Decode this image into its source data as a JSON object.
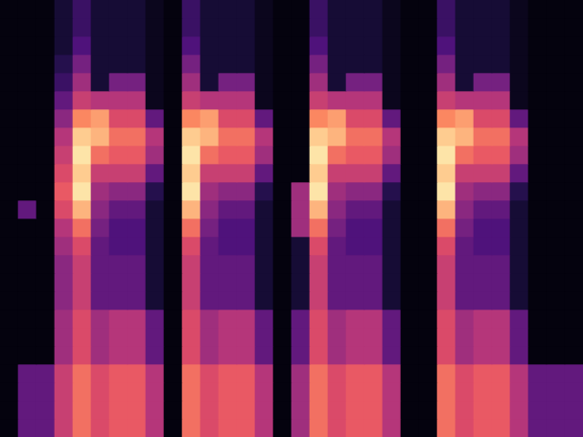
{
  "chart_data": {
    "type": "heatmap",
    "ylim": [
      0,
      24
    ],
    "color_range": [
      0,
      1
    ],
    "grid": false,
    "tick_labels": false,
    "cells": [
      [
        0.02,
        0.02,
        0.02,
        0.1,
        0.2,
        0.1,
        0.1,
        0.1,
        0.05,
        0.02,
        0.2,
        0.1,
        0.1,
        0.1,
        0.05,
        0.02,
        0.02,
        0.2,
        0.1,
        0.1,
        0.1,
        0.05,
        0.02,
        0.02,
        0.2,
        0.1,
        0.1,
        0.1,
        0.05,
        0.02,
        0.02,
        0.02
      ],
      [
        0.02,
        0.02,
        0.02,
        0.1,
        0.2,
        0.1,
        0.1,
        0.1,
        0.05,
        0.02,
        0.2,
        0.1,
        0.1,
        0.1,
        0.05,
        0.02,
        0.02,
        0.2,
        0.1,
        0.1,
        0.1,
        0.05,
        0.02,
        0.02,
        0.2,
        0.1,
        0.1,
        0.1,
        0.05,
        0.02,
        0.02,
        0.02
      ],
      [
        0.02,
        0.02,
        0.02,
        0.1,
        0.25,
        0.1,
        0.1,
        0.1,
        0.05,
        0.02,
        0.25,
        0.1,
        0.1,
        0.1,
        0.05,
        0.02,
        0.02,
        0.25,
        0.1,
        0.1,
        0.1,
        0.05,
        0.02,
        0.02,
        0.25,
        0.1,
        0.1,
        0.1,
        0.05,
        0.02,
        0.02,
        0.02
      ],
      [
        0.02,
        0.02,
        0.02,
        0.15,
        0.35,
        0.1,
        0.1,
        0.1,
        0.05,
        0.02,
        0.35,
        0.1,
        0.1,
        0.1,
        0.05,
        0.02,
        0.02,
        0.35,
        0.1,
        0.1,
        0.1,
        0.05,
        0.02,
        0.02,
        0.35,
        0.1,
        0.1,
        0.1,
        0.05,
        0.02,
        0.02,
        0.02
      ],
      [
        0.02,
        0.02,
        0.02,
        0.2,
        0.45,
        0.1,
        0.35,
        0.35,
        0.05,
        0.02,
        0.45,
        0.1,
        0.35,
        0.35,
        0.05,
        0.02,
        0.02,
        0.45,
        0.1,
        0.35,
        0.35,
        0.05,
        0.02,
        0.02,
        0.45,
        0.1,
        0.35,
        0.35,
        0.05,
        0.02,
        0.02,
        0.02
      ],
      [
        0.02,
        0.02,
        0.02,
        0.3,
        0.55,
        0.5,
        0.5,
        0.5,
        0.05,
        0.02,
        0.55,
        0.5,
        0.5,
        0.5,
        0.05,
        0.02,
        0.02,
        0.55,
        0.5,
        0.5,
        0.5,
        0.05,
        0.02,
        0.02,
        0.55,
        0.5,
        0.5,
        0.5,
        0.05,
        0.02,
        0.02,
        0.02
      ],
      [
        0.02,
        0.02,
        0.02,
        0.4,
        0.75,
        0.8,
        0.6,
        0.6,
        0.3,
        0.02,
        0.75,
        0.8,
        0.6,
        0.6,
        0.3,
        0.02,
        0.02,
        0.75,
        0.8,
        0.6,
        0.6,
        0.3,
        0.02,
        0.02,
        0.75,
        0.8,
        0.6,
        0.6,
        0.3,
        0.02,
        0.02,
        0.02
      ],
      [
        0.02,
        0.02,
        0.02,
        0.5,
        0.9,
        0.85,
        0.7,
        0.7,
        0.5,
        0.02,
        0.9,
        0.85,
        0.7,
        0.7,
        0.5,
        0.02,
        0.02,
        0.9,
        0.85,
        0.7,
        0.7,
        0.5,
        0.02,
        0.02,
        0.9,
        0.85,
        0.7,
        0.7,
        0.5,
        0.02,
        0.02,
        0.02
      ],
      [
        0.02,
        0.02,
        0.02,
        0.55,
        0.95,
        0.7,
        0.65,
        0.65,
        0.45,
        0.02,
        0.95,
        0.7,
        0.65,
        0.65,
        0.45,
        0.02,
        0.02,
        0.95,
        0.7,
        0.65,
        0.65,
        0.45,
        0.02,
        0.02,
        0.95,
        0.7,
        0.65,
        0.65,
        0.45,
        0.02,
        0.02,
        0.02
      ],
      [
        0.02,
        0.02,
        0.02,
        0.6,
        0.9,
        0.55,
        0.55,
        0.55,
        0.3,
        0.02,
        0.9,
        0.55,
        0.55,
        0.55,
        0.3,
        0.02,
        0.02,
        0.9,
        0.55,
        0.55,
        0.55,
        0.3,
        0.02,
        0.02,
        0.9,
        0.55,
        0.55,
        0.55,
        0.3,
        0.02,
        0.02,
        0.02
      ],
      [
        0.02,
        0.02,
        0.02,
        0.65,
        0.95,
        0.45,
        0.4,
        0.4,
        0.15,
        0.02,
        0.95,
        0.45,
        0.4,
        0.4,
        0.15,
        0.02,
        0.45,
        0.95,
        0.45,
        0.4,
        0.4,
        0.15,
        0.02,
        0.02,
        0.95,
        0.45,
        0.4,
        0.4,
        0.15,
        0.02,
        0.02,
        0.02
      ],
      [
        0.02,
        0.3,
        0.02,
        0.6,
        0.85,
        0.4,
        0.3,
        0.3,
        0.1,
        0.02,
        0.85,
        0.4,
        0.3,
        0.3,
        0.1,
        0.02,
        0.45,
        0.85,
        0.4,
        0.3,
        0.3,
        0.1,
        0.02,
        0.02,
        0.85,
        0.4,
        0.3,
        0.3,
        0.1,
        0.02,
        0.02,
        0.02
      ],
      [
        0.02,
        0.02,
        0.02,
        0.5,
        0.7,
        0.35,
        0.25,
        0.25,
        0.1,
        0.02,
        0.7,
        0.35,
        0.25,
        0.25,
        0.1,
        0.02,
        0.45,
        0.7,
        0.35,
        0.25,
        0.25,
        0.1,
        0.02,
        0.02,
        0.7,
        0.35,
        0.25,
        0.25,
        0.1,
        0.02,
        0.02,
        0.02
      ],
      [
        0.02,
        0.02,
        0.02,
        0.45,
        0.6,
        0.3,
        0.25,
        0.25,
        0.1,
        0.02,
        0.6,
        0.3,
        0.25,
        0.25,
        0.1,
        0.02,
        0.1,
        0.6,
        0.3,
        0.25,
        0.25,
        0.1,
        0.02,
        0.02,
        0.6,
        0.3,
        0.25,
        0.25,
        0.1,
        0.02,
        0.02,
        0.02
      ],
      [
        0.02,
        0.02,
        0.02,
        0.4,
        0.55,
        0.3,
        0.3,
        0.3,
        0.1,
        0.02,
        0.55,
        0.3,
        0.3,
        0.3,
        0.1,
        0.02,
        0.1,
        0.55,
        0.3,
        0.3,
        0.3,
        0.1,
        0.02,
        0.02,
        0.55,
        0.3,
        0.3,
        0.3,
        0.1,
        0.02,
        0.02,
        0.02
      ],
      [
        0.02,
        0.02,
        0.02,
        0.4,
        0.55,
        0.3,
        0.3,
        0.3,
        0.1,
        0.02,
        0.55,
        0.3,
        0.3,
        0.3,
        0.1,
        0.02,
        0.1,
        0.55,
        0.3,
        0.3,
        0.3,
        0.1,
        0.02,
        0.02,
        0.55,
        0.3,
        0.3,
        0.3,
        0.1,
        0.02,
        0.02,
        0.02
      ],
      [
        0.02,
        0.02,
        0.02,
        0.4,
        0.55,
        0.3,
        0.3,
        0.3,
        0.1,
        0.02,
        0.55,
        0.3,
        0.3,
        0.3,
        0.1,
        0.02,
        0.1,
        0.55,
        0.3,
        0.3,
        0.3,
        0.1,
        0.02,
        0.02,
        0.55,
        0.3,
        0.3,
        0.3,
        0.1,
        0.02,
        0.02,
        0.02
      ],
      [
        0.02,
        0.02,
        0.02,
        0.45,
        0.6,
        0.45,
        0.5,
        0.5,
        0.3,
        0.02,
        0.6,
        0.45,
        0.5,
        0.5,
        0.3,
        0.02,
        0.3,
        0.6,
        0.45,
        0.5,
        0.5,
        0.3,
        0.02,
        0.02,
        0.6,
        0.45,
        0.5,
        0.5,
        0.3,
        0.02,
        0.02,
        0.02
      ],
      [
        0.02,
        0.02,
        0.02,
        0.45,
        0.6,
        0.45,
        0.5,
        0.5,
        0.3,
        0.02,
        0.6,
        0.45,
        0.5,
        0.5,
        0.3,
        0.02,
        0.3,
        0.6,
        0.45,
        0.5,
        0.5,
        0.3,
        0.02,
        0.02,
        0.6,
        0.45,
        0.5,
        0.5,
        0.3,
        0.02,
        0.02,
        0.02
      ],
      [
        0.02,
        0.02,
        0.02,
        0.45,
        0.6,
        0.45,
        0.5,
        0.5,
        0.3,
        0.02,
        0.6,
        0.45,
        0.5,
        0.5,
        0.3,
        0.02,
        0.3,
        0.6,
        0.45,
        0.5,
        0.5,
        0.3,
        0.02,
        0.02,
        0.6,
        0.45,
        0.5,
        0.5,
        0.3,
        0.02,
        0.02,
        0.02
      ],
      [
        0.02,
        0.3,
        0.3,
        0.55,
        0.7,
        0.6,
        0.65,
        0.65,
        0.5,
        0.02,
        0.7,
        0.6,
        0.65,
        0.65,
        0.5,
        0.02,
        0.45,
        0.7,
        0.6,
        0.65,
        0.65,
        0.5,
        0.02,
        0.02,
        0.7,
        0.6,
        0.65,
        0.65,
        0.5,
        0.3,
        0.3,
        0.3
      ],
      [
        0.02,
        0.3,
        0.3,
        0.55,
        0.7,
        0.6,
        0.65,
        0.65,
        0.5,
        0.02,
        0.7,
        0.6,
        0.65,
        0.65,
        0.5,
        0.02,
        0.45,
        0.7,
        0.6,
        0.65,
        0.65,
        0.5,
        0.02,
        0.02,
        0.7,
        0.6,
        0.65,
        0.65,
        0.5,
        0.3,
        0.3,
        0.3
      ],
      [
        0.02,
        0.3,
        0.3,
        0.55,
        0.7,
        0.6,
        0.65,
        0.65,
        0.5,
        0.02,
        0.7,
        0.6,
        0.65,
        0.65,
        0.5,
        0.02,
        0.45,
        0.7,
        0.6,
        0.65,
        0.65,
        0.5,
        0.02,
        0.02,
        0.7,
        0.6,
        0.65,
        0.65,
        0.5,
        0.3,
        0.3,
        0.3
      ],
      [
        0.02,
        0.3,
        0.3,
        0.55,
        0.7,
        0.6,
        0.65,
        0.65,
        0.5,
        0.02,
        0.7,
        0.6,
        0.65,
        0.65,
        0.5,
        0.02,
        0.45,
        0.7,
        0.6,
        0.65,
        0.65,
        0.5,
        0.02,
        0.02,
        0.7,
        0.6,
        0.65,
        0.65,
        0.5,
        0.3,
        0.3,
        0.3
      ]
    ]
  }
}
